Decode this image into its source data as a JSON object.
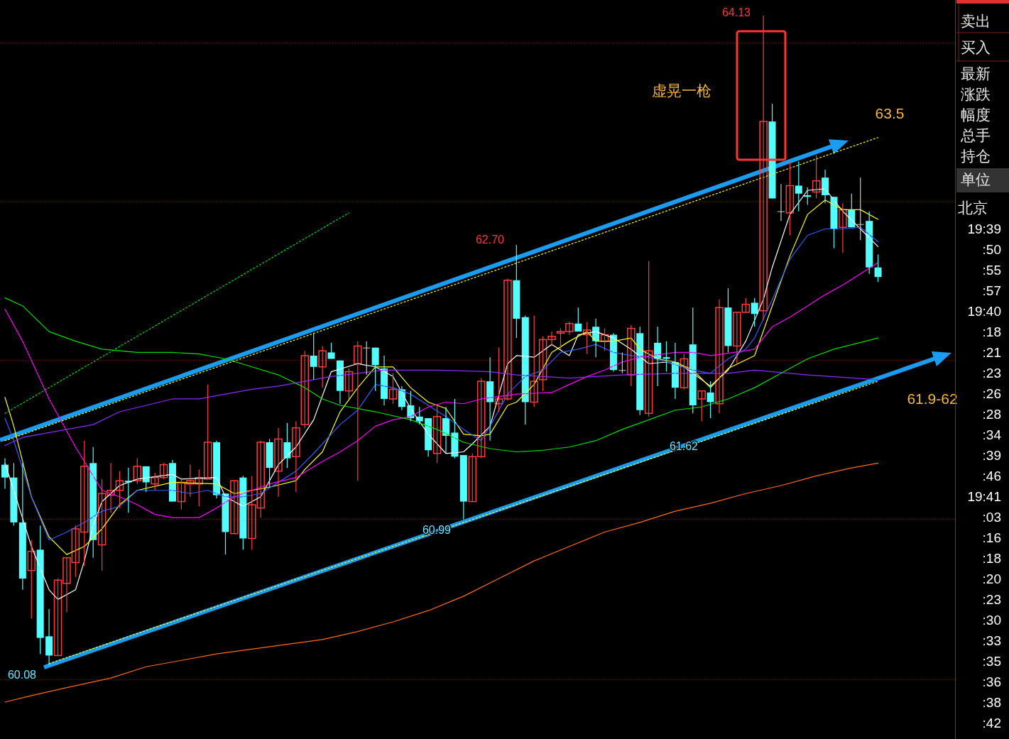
{
  "chart_data": [
    {
      "type": "candlestick",
      "grid": "y",
      "yticks": [
        {
          "value": 63.96,
          "label": null
        },
        {
          "value": 62.97,
          "label": null
        },
        {
          "value": 61.98,
          "label": null
        },
        {
          "value": 60.99,
          "label": null
        },
        {
          "value": 59.99,
          "label": null
        }
      ],
      "categories": [
        null,
        null,
        null,
        null,
        null,
        null,
        null,
        null,
        null,
        null,
        null,
        null,
        null,
        null,
        null,
        null,
        null,
        null,
        null,
        null,
        null,
        null,
        null,
        null,
        null,
        null,
        null,
        null,
        null,
        null,
        null,
        null,
        null,
        null,
        null,
        null,
        null,
        null,
        null,
        null,
        null,
        null,
        null,
        null,
        null,
        null,
        null,
        null,
        null,
        null,
        null,
        null,
        null,
        null,
        null,
        null,
        null,
        null,
        null,
        null,
        null,
        null,
        null,
        null,
        null,
        null,
        null,
        null,
        null,
        null,
        null,
        null,
        null,
        null,
        null,
        null,
        null,
        null,
        null,
        null,
        null,
        null,
        null,
        null,
        null,
        null,
        null,
        null,
        null,
        null,
        null,
        null,
        null,
        null,
        null,
        null,
        null,
        null,
        null,
        null
      ],
      "ohlc": [
        [
          61.33,
          61.37,
          61.18,
          61.25
        ],
        [
          61.25,
          61.34,
          60.95,
          60.97
        ],
        [
          60.97,
          61.34,
          60.55,
          60.62
        ],
        [
          60.67,
          60.86,
          60.37,
          60.79
        ],
        [
          60.8,
          60.95,
          60.15,
          60.25
        ],
        [
          60.26,
          60.43,
          60.08,
          60.14
        ],
        [
          60.14,
          60.62,
          60.14,
          60.61
        ],
        [
          60.59,
          60.75,
          60.41,
          60.75
        ],
        [
          60.72,
          60.95,
          60.63,
          60.93
        ],
        [
          60.91,
          61.48,
          60.7,
          61.32
        ],
        [
          61.34,
          61.44,
          60.75,
          60.86
        ],
        [
          60.83,
          61.24,
          60.67,
          61.15
        ],
        [
          61.14,
          61.34,
          61.03,
          61.17
        ],
        [
          61.17,
          61.29,
          61.06,
          61.23
        ],
        [
          61.23,
          61.31,
          61.03,
          61.22
        ],
        [
          61.23,
          61.37,
          61.21,
          61.32
        ],
        [
          61.32,
          61.32,
          61.16,
          61.22
        ],
        [
          61.21,
          61.28,
          61.17,
          61.25
        ],
        [
          61.25,
          61.34,
          61.24,
          61.33
        ],
        [
          61.34,
          61.36,
          61.1,
          61.1
        ],
        [
          61.1,
          61.25,
          61.05,
          61.22
        ],
        [
          61.21,
          61.33,
          61.13,
          61.23
        ],
        [
          61.21,
          61.3,
          61.07,
          61.25
        ],
        [
          61.24,
          61.83,
          61.24,
          61.47
        ],
        [
          61.47,
          61.48,
          61.12,
          61.14
        ],
        [
          61.15,
          61.15,
          60.77,
          60.91
        ],
        [
          60.9,
          61.23,
          60.9,
          61.23
        ],
        [
          61.25,
          61.26,
          60.8,
          60.87
        ],
        [
          60.87,
          61.26,
          60.8,
          61.08
        ],
        [
          61.06,
          61.48,
          61.0,
          61.47
        ],
        [
          61.47,
          61.49,
          61.19,
          61.31
        ],
        [
          61.29,
          61.56,
          61.13,
          61.49
        ],
        [
          61.47,
          61.59,
          61.31,
          61.37
        ],
        [
          61.38,
          61.6,
          61.16,
          61.56
        ],
        [
          61.58,
          62.04,
          61.56,
          62.01
        ],
        [
          62.01,
          62.15,
          61.86,
          61.94
        ],
        [
          61.94,
          62.07,
          61.81,
          62.04
        ],
        [
          62.03,
          62.09,
          61.99,
          61.99
        ],
        [
          61.98,
          61.98,
          61.71,
          61.79
        ],
        [
          61.79,
          61.93,
          61.74,
          61.91
        ],
        [
          61.96,
          62.1,
          61.23,
          62.07
        ],
        [
          62.06,
          62.1,
          61.89,
          62.06
        ],
        [
          62.06,
          62.06,
          61.79,
          61.95
        ],
        [
          61.93,
          62.01,
          61.7,
          61.74
        ],
        [
          61.74,
          61.9,
          61.71,
          61.8
        ],
        [
          61.8,
          61.82,
          61.67,
          61.69
        ],
        [
          61.7,
          61.79,
          61.6,
          61.62
        ],
        [
          61.63,
          61.69,
          61.58,
          61.6
        ],
        [
          61.62,
          61.62,
          61.38,
          61.42
        ],
        [
          61.4,
          61.71,
          61.34,
          61.63
        ],
        [
          61.62,
          61.69,
          61.4,
          61.51
        ],
        [
          61.53,
          61.74,
          61.37,
          61.38
        ],
        [
          61.39,
          61.39,
          60.99,
          61.1
        ],
        [
          61.1,
          61.4,
          61.1,
          61.38
        ],
        [
          61.38,
          61.87,
          61.37,
          61.85
        ],
        [
          61.85,
          62.0,
          61.48,
          61.72
        ],
        [
          61.71,
          62.06,
          61.66,
          61.74
        ],
        [
          61.74,
          62.49,
          61.73,
          62.48
        ],
        [
          62.48,
          62.7,
          62.12,
          62.24
        ],
        [
          62.25,
          62.26,
          61.58,
          61.72
        ],
        [
          61.72,
          62.26,
          61.69,
          61.85
        ],
        [
          61.86,
          62.13,
          61.79,
          62.11
        ],
        [
          62.11,
          62.16,
          62.07,
          62.13
        ],
        [
          62.15,
          62.18,
          62.05,
          62.16
        ],
        [
          62.16,
          62.22,
          62.14,
          62.21
        ],
        [
          62.21,
          62.31,
          62.16,
          62.16
        ],
        [
          62.14,
          62.22,
          62.02,
          62.17
        ],
        [
          62.19,
          62.24,
          62.0,
          62.1
        ],
        [
          62.1,
          62.18,
          62.04,
          62.14
        ],
        [
          62.14,
          62.15,
          61.91,
          61.92
        ],
        [
          61.92,
          62.03,
          61.9,
          61.92
        ],
        [
          61.89,
          62.2,
          61.82,
          62.18
        ],
        [
          62.15,
          62.19,
          61.64,
          61.67
        ],
        [
          61.65,
          62.6,
          61.63,
          62.04
        ],
        [
          62.09,
          62.19,
          61.82,
          61.99
        ],
        [
          62.0,
          62.1,
          61.91,
          61.99
        ],
        [
          61.97,
          62.09,
          61.74,
          61.81
        ],
        [
          61.81,
          62.02,
          61.8,
          61.99
        ],
        [
          62.08,
          62.31,
          61.65,
          61.7
        ],
        [
          61.74,
          61.79,
          61.6,
          61.79
        ],
        [
          61.78,
          61.85,
          61.62,
          61.72
        ],
        [
          61.71,
          62.36,
          61.65,
          62.31
        ],
        [
          62.31,
          62.43,
          62.03,
          62.07
        ],
        [
          62.07,
          62.28,
          61.95,
          62.28
        ],
        [
          62.28,
          62.37,
          62.28,
          62.33
        ],
        [
          62.34,
          62.37,
          62.19,
          62.27
        ],
        [
          62.29,
          64.13,
          62.23,
          63.47
        ],
        [
          63.47,
          63.58,
          62.99,
          62.99
        ],
        [
          62.91,
          63.08,
          62.85,
          62.91
        ],
        [
          62.9,
          63.22,
          62.76,
          63.07
        ],
        [
          63.07,
          63.22,
          62.91,
          63.02
        ],
        [
          63.01,
          63.06,
          62.95,
          63.0
        ],
        [
          63.03,
          63.26,
          62.99,
          63.1
        ],
        [
          63.12,
          63.17,
          62.96,
          63.01
        ],
        [
          63.0,
          63.0,
          62.68,
          62.8
        ],
        [
          62.81,
          62.96,
          62.65,
          62.92
        ],
        [
          62.92,
          63.02,
          62.81,
          62.81
        ],
        [
          62.83,
          63.12,
          62.73,
          62.83
        ],
        [
          62.85,
          62.91,
          62.52,
          62.56
        ],
        [
          62.56,
          62.64,
          62.47,
          62.5
        ]
      ],
      "series": [
        {
          "type": "line",
          "color": "#ffffff",
          "values": [
            61.34,
            61.17,
            null,
            60.82,
            null,
            60.55,
            60.49,
            null,
            60.55,
            60.73,
            60.95,
            61.1,
            null,
            61.2,
            null,
            61.24,
            null,
            null,
            null,
            61.27,
            61.24,
            null,
            null,
            null,
            61.25,
            61.13,
            null,
            61.07,
            null,
            61.13,
            null,
            61.33,
            null,
            61.44,
            null,
            61.61,
            null,
            61.91,
            null,
            null,
            61.96,
            null,
            61.94,
            null,
            61.88,
            null,
            61.68,
            null,
            61.52,
            null,
            61.4,
            null,
            61.41,
            61.46,
            null,
            61.57,
            null,
            61.96,
            62.01,
            null,
            62.0,
            null,
            62.08,
            null,
            62.01,
            62.14,
            null,
            62.16,
            null,
            62.12,
            null,
            62.05,
            null,
            61.96,
            null,
            61.97,
            null,
            61.94,
            null,
            null,
            61.82,
            null,
            61.92,
            null,
            62.1,
            null,
            62.36,
            62.56,
            null,
            62.89,
            null,
            63.04,
            null,
            63.05,
            null,
            62.91,
            null,
            62.8,
            null,
            62.69
          ]
        },
        {
          "type": "line",
          "color": "#ffff00",
          "values": [
            61.75,
            61.57,
            null,
            61.13,
            null,
            60.88,
            null,
            60.77,
            null,
            60.82,
            null,
            60.93,
            null,
            61.08,
            null,
            61.17,
            null,
            null,
            null,
            61.22,
            null,
            null,
            null,
            null,
            61.21,
            null,
            61.15,
            null,
            null,
            null,
            61.19,
            null,
            null,
            61.23,
            61.3,
            null,
            61.41,
            null,
            61.66,
            null,
            61.81,
            null,
            61.94,
            null,
            61.94,
            null,
            61.81,
            null,
            61.72,
            null,
            61.68,
            null,
            61.52,
            null,
            61.51,
            61.52,
            null,
            61.7,
            61.72,
            null,
            61.83,
            null,
            62.03,
            null,
            62.1,
            null,
            62.16,
            62.1,
            null,
            62.1,
            null,
            62.12,
            62.05,
            null,
            61.99,
            null,
            61.97,
            null,
            61.92,
            null,
            61.81,
            null,
            61.93,
            null,
            null,
            62.01,
            null,
            62.32,
            null,
            62.63,
            null,
            62.89,
            null,
            62.98,
            null,
            62.92,
            null,
            62.92,
            null,
            62.86
          ]
        },
        {
          "type": "line",
          "color": "#2f5cff",
          "values": [
            61.62,
            61.48,
            null,
            61.13,
            null,
            60.86,
            null,
            60.91,
            null,
            60.97,
            null,
            61.04,
            null,
            61.07,
            null,
            61.17,
            null,
            null,
            null,
            61.17,
            null,
            61.15,
            null,
            61.17,
            null,
            61.13,
            null,
            61.13,
            null,
            61.15,
            null,
            61.22,
            null,
            61.29,
            null,
            61.4,
            null,
            61.52,
            61.58,
            null,
            61.67,
            null,
            61.83,
            null,
            61.81,
            null,
            61.77,
            null,
            61.7,
            null,
            61.63,
            null,
            61.55,
            null,
            61.48,
            61.57,
            null,
            61.77,
            null,
            61.88,
            null,
            61.92,
            null,
            62.03,
            null,
            62.05,
            null,
            62.08,
            null,
            62.03,
            null,
            62.01,
            null,
            62.0,
            null,
            61.97,
            null,
            null,
            61.92,
            null,
            61.9,
            null,
            61.99,
            null,
            62.05,
            62.12,
            null,
            62.36,
            null,
            62.61,
            null,
            62.76,
            null,
            62.8,
            null,
            62.8,
            null,
            62.81,
            null,
            62.72
          ]
        },
        {
          "type": "line",
          "color": "#ff00ff",
          "values": [
            62.3,
            null,
            62.1,
            null,
            null,
            61.74,
            null,
            null,
            61.44,
            null,
            null,
            61.17,
            null,
            61.13,
            null,
            61.08,
            null,
            61.02,
            null,
            61.0,
            null,
            null,
            61.0,
            null,
            61.06,
            null,
            61.13,
            null,
            61.17,
            null,
            61.21,
            null,
            null,
            61.25,
            null,
            null,
            61.35,
            null,
            61.41,
            null,
            61.48,
            null,
            61.57,
            null,
            61.61,
            null,
            61.63,
            null,
            61.69,
            null,
            61.72,
            null,
            61.71,
            null,
            61.74,
            null,
            null,
            null,
            61.77,
            null,
            null,
            null,
            61.78,
            null,
            61.83,
            null,
            61.88,
            null,
            61.92,
            null,
            61.97,
            null,
            62.0,
            null,
            null,
            null,
            62.03,
            null,
            62.03,
            null,
            62.01,
            null,
            null,
            null,
            62.04,
            62.05,
            null,
            62.19,
            null,
            62.25,
            null,
            62.32,
            null,
            62.39,
            null,
            62.45,
            null,
            62.52,
            null,
            62.59
          ]
        },
        {
          "type": "line",
          "color": "#8a2bff",
          "values": [
            61.45,
            null,
            61.5,
            null,
            null,
            null,
            null,
            61.55,
            null,
            null,
            61.58,
            null,
            null,
            61.66,
            null,
            null,
            61.7,
            null,
            null,
            61.74,
            null,
            null,
            61.74,
            null,
            null,
            61.77,
            null,
            null,
            61.8,
            null,
            null,
            61.82,
            null,
            null,
            61.85,
            null,
            null,
            61.88,
            null,
            null,
            61.9,
            null,
            null,
            61.92,
            null,
            null,
            null,
            null,
            null,
            61.92,
            null,
            null,
            null,
            null,
            null,
            61.91,
            null,
            null,
            61.89,
            null,
            null,
            null,
            null,
            null,
            61.87,
            null,
            null,
            null,
            null,
            null,
            61.89,
            null,
            null,
            null,
            null,
            null,
            61.9,
            null,
            null,
            null,
            null,
            null,
            61.9,
            null,
            null,
            61.92,
            null,
            null,
            null,
            null,
            null,
            61.89,
            null,
            null,
            null,
            null,
            null,
            null,
            null,
            61.86
          ]
        },
        {
          "type": "line",
          "color": "#00e000",
          "values": [
            62.37,
            null,
            62.32,
            null,
            null,
            62.16,
            null,
            null,
            62.1,
            null,
            null,
            62.05,
            null,
            null,
            null,
            62.03,
            null,
            null,
            null,
            62.03,
            null,
            null,
            62.02,
            null,
            null,
            61.99,
            null,
            null,
            61.94,
            null,
            null,
            61.89,
            null,
            null,
            61.81,
            null,
            61.74,
            null,
            61.7,
            null,
            null,
            null,
            61.66,
            null,
            null,
            null,
            61.61,
            null,
            null,
            61.55,
            null,
            null,
            61.47,
            null,
            null,
            61.43,
            null,
            null,
            61.41,
            null,
            null,
            61.42,
            null,
            null,
            61.44,
            null,
            null,
            61.48,
            null,
            null,
            61.55,
            null,
            null,
            61.61,
            null,
            null,
            61.67,
            null,
            null,
            61.69,
            null,
            null,
            61.74,
            null,
            null,
            61.81,
            null,
            null,
            61.9,
            null,
            null,
            61.99,
            null,
            null,
            62.05,
            null,
            null,
            null,
            null,
            62.12
          ]
        },
        {
          "type": "line",
          "color": "#ff6a1a",
          "values": [
            59.85,
            null,
            null,
            59.89,
            null,
            null,
            null,
            59.94,
            null,
            null,
            null,
            null,
            60.0,
            null,
            null,
            null,
            60.07,
            null,
            null,
            null,
            60.11,
            null,
            null,
            null,
            60.15,
            null,
            null,
            null,
            60.18,
            null,
            null,
            null,
            60.21,
            null,
            null,
            null,
            60.24,
            null,
            null,
            null,
            60.29,
            null,
            null,
            null,
            60.35,
            null,
            null,
            null,
            60.42,
            null,
            null,
            null,
            60.51,
            null,
            null,
            null,
            60.62,
            null,
            null,
            null,
            60.73,
            null,
            null,
            null,
            60.82,
            null,
            null,
            null,
            60.91,
            null,
            null,
            null,
            60.97,
            null,
            null,
            null,
            61.04,
            null,
            null,
            null,
            61.09,
            null,
            null,
            null,
            61.15,
            null,
            null,
            null,
            61.2,
            null,
            null,
            null,
            61.26,
            null,
            null,
            null,
            61.31,
            null,
            null,
            61.34
          ]
        },
        {
          "type": "line",
          "color": "#00e000",
          "line_style": "dotted",
          "values": [
            61.65,
            null,
            null,
            null,
            null,
            null,
            null,
            null,
            null,
            null,
            null,
            null,
            null,
            null,
            null,
            null,
            null,
            null,
            null,
            null,
            null,
            null,
            null,
            null,
            null,
            null,
            null,
            null,
            null,
            null,
            null,
            null,
            null,
            null,
            null,
            null,
            null,
            null,
            null,
            62.9,
            null,
            null,
            null,
            null,
            null,
            null,
            null,
            null,
            null,
            null,
            null,
            null,
            null,
            null,
            null,
            null,
            null,
            null,
            null,
            null,
            null,
            null,
            null,
            null,
            null,
            null,
            null,
            null,
            null,
            null,
            null,
            null,
            null,
            null,
            null,
            null,
            null,
            null,
            null,
            null,
            null,
            null,
            null,
            null,
            null,
            null,
            null,
            null,
            null,
            null,
            null,
            null,
            null,
            null,
            null,
            null,
            null,
            null,
            null,
            null
          ]
        },
        {
          "type": "line",
          "color": "#ffff00",
          "line_style": "dotted",
          "values": [
            61.48,
            null,
            null,
            null,
            null,
            null,
            null,
            null,
            null,
            null,
            null,
            null,
            null,
            null,
            null,
            null,
            null,
            null,
            null,
            null,
            null,
            null,
            null,
            null,
            null,
            null,
            null,
            null,
            null,
            null,
            null,
            null,
            null,
            null,
            null,
            null,
            null,
            null,
            null,
            null,
            null,
            null,
            null,
            null,
            null,
            null,
            null,
            null,
            null,
            null,
            null,
            null,
            null,
            null,
            null,
            null,
            null,
            null,
            null,
            null,
            null,
            null,
            null,
            null,
            null,
            null,
            null,
            null,
            null,
            null,
            null,
            null,
            null,
            null,
            null,
            null,
            null,
            null,
            null,
            null,
            null,
            null,
            null,
            null,
            null,
            null,
            null,
            null,
            null,
            null,
            null,
            null,
            null,
            null,
            null,
            null,
            null,
            null,
            null,
            63.37
          ]
        },
        {
          "type": "line",
          "color": "#ffff00",
          "line_style": "dotted",
          "values": [
            null,
            null,
            null,
            null,
            null,
            60.09,
            null,
            null,
            null,
            null,
            null,
            null,
            null,
            null,
            null,
            null,
            null,
            null,
            null,
            null,
            null,
            null,
            null,
            null,
            null,
            null,
            null,
            null,
            null,
            null,
            null,
            null,
            null,
            null,
            null,
            null,
            null,
            null,
            null,
            null,
            null,
            null,
            null,
            null,
            null,
            null,
            null,
            null,
            null,
            null,
            null,
            null,
            null,
            null,
            null,
            null,
            null,
            null,
            null,
            null,
            null,
            null,
            null,
            null,
            null,
            null,
            null,
            null,
            null,
            null,
            null,
            null,
            null,
            null,
            null,
            null,
            null,
            null,
            null,
            null,
            null,
            null,
            null,
            null,
            null,
            null,
            null,
            null,
            null,
            null,
            null,
            null,
            null,
            null,
            null,
            null,
            null,
            null,
            null,
            61.85
          ]
        }
      ],
      "annotations": [
        "64.13",
        "62.70",
        "60.99",
        "61.62",
        "60.08",
        "虚晃一枪",
        "63.5",
        "61.9-62"
      ]
    },
    {
      "type": "other",
      "annotations": [
        "卖出",
        "买入",
        "最新",
        "涨跌",
        "幅度",
        "总手",
        "持仓",
        "单位",
        "北京",
        "19:39",
        ":50",
        ":55",
        ":57",
        "19:40",
        ":18",
        ":21",
        ":23",
        ":26",
        ":28",
        ":34",
        ":39",
        ":46",
        "19:41",
        ":03",
        ":16",
        ":18",
        ":20",
        ":23",
        ":30",
        ":33",
        ":35",
        ":36",
        ":38",
        ":42"
      ]
    }
  ]
}
